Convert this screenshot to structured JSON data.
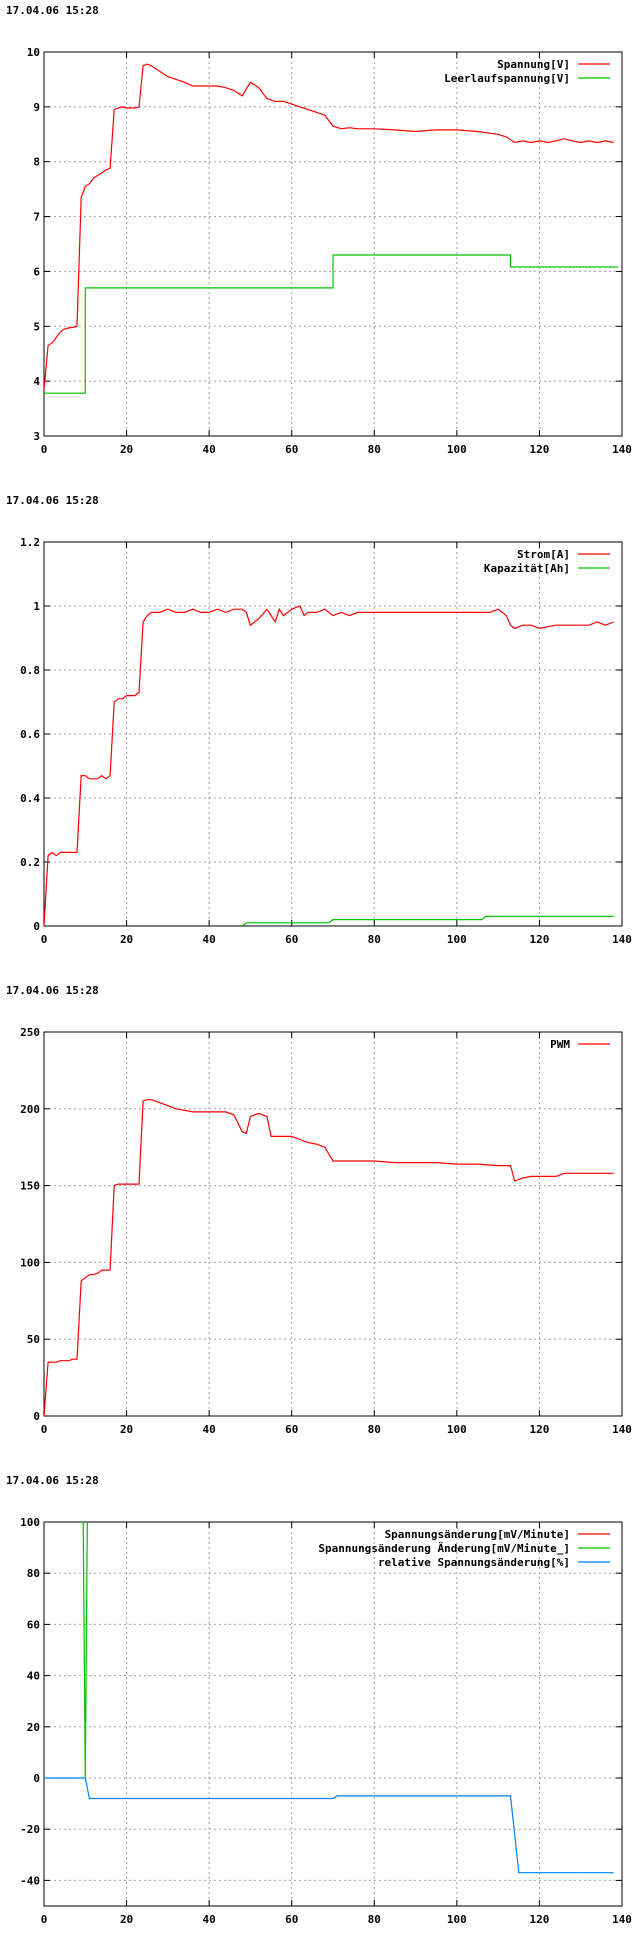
{
  "chart_data": [
    {
      "type": "line",
      "timestamp": "17.04.06 15:28",
      "xlim": [
        0,
        140
      ],
      "ylim": [
        3,
        10
      ],
      "xticks": [
        0,
        20,
        40,
        60,
        80,
        100,
        120,
        140
      ],
      "yticks": [
        3,
        4,
        5,
        6,
        7,
        8,
        9,
        10
      ],
      "grid": true,
      "legend": "top-right",
      "series": [
        {
          "name": "Spannung[V]",
          "color": "#ff0000",
          "x": [
            0,
            1,
            2,
            3,
            4,
            5,
            6,
            7,
            8,
            9,
            10,
            11,
            12,
            13,
            14,
            15,
            16,
            17,
            18,
            19,
            20,
            21,
            22,
            23,
            24,
            25,
            26,
            27,
            28,
            29,
            30,
            32,
            34,
            36,
            38,
            40,
            42,
            44,
            46,
            48,
            50,
            52,
            54,
            56,
            58,
            60,
            62,
            64,
            66,
            68,
            70,
            72,
            74,
            76,
            78,
            80,
            85,
            90,
            95,
            100,
            105,
            110,
            112,
            114,
            116,
            118,
            120,
            122,
            124,
            126,
            128,
            130,
            132,
            134,
            136,
            138
          ],
          "y": [
            3.85,
            4.65,
            4.7,
            4.8,
            4.9,
            4.95,
            4.97,
            4.98,
            5.0,
            7.35,
            7.55,
            7.6,
            7.7,
            7.75,
            7.8,
            7.85,
            7.88,
            8.95,
            8.98,
            9.0,
            8.98,
            8.98,
            8.98,
            9.0,
            9.75,
            9.78,
            9.75,
            9.7,
            9.65,
            9.6,
            9.55,
            9.5,
            9.45,
            9.38,
            9.38,
            9.38,
            9.38,
            9.35,
            9.3,
            9.2,
            9.45,
            9.35,
            9.15,
            9.1,
            9.1,
            9.05,
            9.0,
            8.95,
            8.9,
            8.85,
            8.65,
            8.6,
            8.62,
            8.6,
            8.6,
            8.6,
            8.58,
            8.55,
            8.58,
            8.58,
            8.55,
            8.5,
            8.45,
            8.35,
            8.38,
            8.35,
            8.38,
            8.35,
            8.38,
            8.42,
            8.38,
            8.35,
            8.38,
            8.35,
            8.38,
            8.35
          ]
        },
        {
          "name": "Leerlaufspannung[V]",
          "color": "#00c000",
          "x": [
            0,
            10,
            10,
            70,
            70,
            113,
            113,
            139
          ],
          "y": [
            3.78,
            3.78,
            5.7,
            5.7,
            6.3,
            6.3,
            6.08,
            6.08
          ]
        }
      ]
    },
    {
      "type": "line",
      "timestamp": "17.04.06 15:28",
      "xlim": [
        0,
        140
      ],
      "ylim": [
        0,
        1.2
      ],
      "xticks": [
        0,
        20,
        40,
        60,
        80,
        100,
        120,
        140
      ],
      "yticks": [
        0,
        0.2,
        0.4,
        0.6,
        0.8,
        1,
        1.2
      ],
      "grid": true,
      "legend": "top-right",
      "series": [
        {
          "name": "Strom[A]",
          "color": "#ff0000",
          "x": [
            0,
            1,
            2,
            3,
            4,
            5,
            6,
            7,
            8,
            9,
            10,
            11,
            12,
            13,
            14,
            15,
            16,
            17,
            18,
            19,
            20,
            21,
            22,
            23,
            24,
            25,
            26,
            27,
            28,
            30,
            32,
            34,
            36,
            38,
            40,
            42,
            44,
            46,
            48,
            49,
            50,
            52,
            54,
            55,
            56,
            57,
            58,
            60,
            62,
            63,
            64,
            66,
            68,
            70,
            72,
            74,
            76,
            78,
            80,
            85,
            90,
            95,
            100,
            105,
            108,
            110,
            112,
            113,
            114,
            116,
            118,
            120,
            124,
            128,
            132,
            134,
            136,
            138
          ],
          "y": [
            0.0,
            0.22,
            0.23,
            0.22,
            0.23,
            0.23,
            0.23,
            0.23,
            0.23,
            0.47,
            0.47,
            0.46,
            0.46,
            0.46,
            0.47,
            0.46,
            0.47,
            0.7,
            0.71,
            0.71,
            0.72,
            0.72,
            0.72,
            0.73,
            0.95,
            0.97,
            0.98,
            0.98,
            0.98,
            0.99,
            0.98,
            0.98,
            0.99,
            0.98,
            0.98,
            0.99,
            0.98,
            0.99,
            0.99,
            0.98,
            0.94,
            0.96,
            0.99,
            0.97,
            0.95,
            0.99,
            0.97,
            0.99,
            1.0,
            0.97,
            0.98,
            0.98,
            0.99,
            0.97,
            0.98,
            0.97,
            0.98,
            0.98,
            0.98,
            0.98,
            0.98,
            0.98,
            0.98,
            0.98,
            0.98,
            0.99,
            0.97,
            0.94,
            0.93,
            0.94,
            0.94,
            0.93,
            0.94,
            0.94,
            0.94,
            0.95,
            0.94,
            0.95
          ]
        },
        {
          "name": "Kapazität[Ah]",
          "color": "#00c000",
          "x": [
            48,
            49,
            69,
            70,
            106,
            107,
            138
          ],
          "y": [
            0.0,
            0.01,
            0.01,
            0.02,
            0.02,
            0.03,
            0.03
          ]
        }
      ]
    },
    {
      "type": "line",
      "timestamp": "17.04.06 15:28",
      "xlim": [
        0,
        140
      ],
      "ylim": [
        0,
        250
      ],
      "xticks": [
        0,
        20,
        40,
        60,
        80,
        100,
        120,
        140
      ],
      "yticks": [
        0,
        50,
        100,
        150,
        200,
        250
      ],
      "grid": true,
      "legend": "top-right",
      "series": [
        {
          "name": "PWM",
          "color": "#ff0000",
          "x": [
            0,
            1,
            2,
            3,
            4,
            5,
            6,
            7,
            8,
            9,
            10,
            11,
            12,
            13,
            14,
            15,
            16,
            17,
            18,
            19,
            20,
            21,
            22,
            23,
            24,
            25,
            26,
            28,
            30,
            32,
            34,
            36,
            38,
            40,
            42,
            44,
            46,
            48,
            49,
            50,
            51,
            52,
            53,
            54,
            55,
            56,
            58,
            60,
            62,
            64,
            66,
            68,
            70,
            71,
            72,
            74,
            76,
            78,
            80,
            85,
            90,
            95,
            100,
            105,
            110,
            112,
            113,
            114,
            116,
            118,
            120,
            122,
            124,
            126,
            128,
            130,
            132,
            134,
            136,
            138
          ],
          "y": [
            0,
            35,
            35,
            35,
            36,
            36,
            36,
            37,
            37,
            88,
            90,
            92,
            92,
            93,
            95,
            95,
            95,
            150,
            151,
            151,
            151,
            151,
            151,
            151,
            205,
            206,
            206,
            204,
            202,
            200,
            199,
            198,
            198,
            198,
            198,
            198,
            196,
            185,
            184,
            195,
            196,
            197,
            196,
            195,
            182,
            182,
            182,
            182,
            180,
            178,
            177,
            175,
            166,
            166,
            166,
            166,
            166,
            166,
            166,
            165,
            165,
            165,
            164,
            164,
            163,
            163,
            163,
            153,
            155,
            156,
            156,
            156,
            156,
            158,
            158,
            158,
            158,
            158,
            158,
            158
          ]
        }
      ]
    },
    {
      "type": "line",
      "timestamp": "17.04.06 15:28",
      "xlim": [
        0,
        140
      ],
      "ylim": [
        -50,
        100
      ],
      "xticks": [
        0,
        20,
        40,
        60,
        80,
        100,
        120,
        140
      ],
      "yticks": [
        -40,
        -20,
        0,
        20,
        40,
        60,
        80,
        100
      ],
      "grid": true,
      "legend": "top-right",
      "series": [
        {
          "name": "Spannungsänderung[mV/Minute]",
          "color": "#ff0000",
          "x": [],
          "y": []
        },
        {
          "name": "Spannungsänderung Änderung[mV/Minute_]",
          "color": "#00c000",
          "x": [
            9.5,
            10,
            10.5
          ],
          "y": [
            100,
            0,
            100
          ]
        },
        {
          "name": "relative Spannungsänderung[%]",
          "color": "#0080ff",
          "x": [
            0,
            10,
            11,
            70,
            71,
            113,
            115,
            138
          ],
          "y": [
            0,
            0,
            -8,
            -8,
            -7,
            -7,
            -37,
            -37
          ]
        }
      ]
    }
  ]
}
